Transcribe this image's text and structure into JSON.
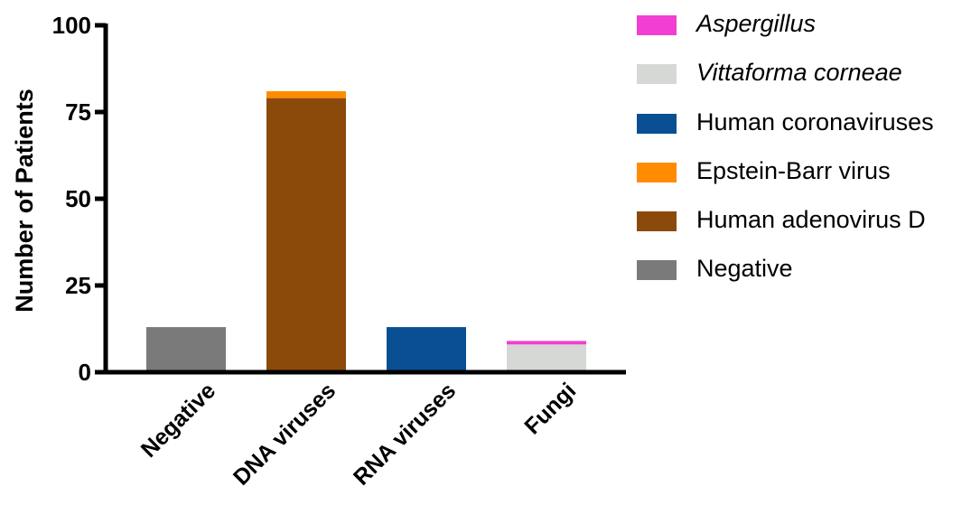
{
  "chart_data": {
    "type": "bar",
    "stacked": true,
    "title": "",
    "xlabel": "",
    "ylabel": "Number of Patients",
    "ylim": [
      0,
      100
    ],
    "yticks": [
      "0",
      "25",
      "50",
      "75",
      "100"
    ],
    "categories": [
      "Negative",
      "DNA viruses",
      "RNA viruses",
      "Fungi"
    ],
    "series": [
      {
        "name": "Negative",
        "color": "#7a7a7a",
        "values": [
          13,
          0,
          0,
          0
        ]
      },
      {
        "name": "Human adenovirus D",
        "color": "#8b4a09",
        "values": [
          0,
          79,
          0,
          0
        ]
      },
      {
        "name": "Epstein-Barr virus",
        "color": "#ff8c00",
        "values": [
          0,
          2,
          0,
          0
        ]
      },
      {
        "name": "Human coronaviruses",
        "color": "#0a4f94",
        "values": [
          0,
          0,
          13,
          0
        ]
      },
      {
        "name": "Vittaforma corneae",
        "color": "#d5d8d5",
        "values": [
          0,
          0,
          0,
          8
        ]
      },
      {
        "name": "Aspergillus",
        "color": "#f23ed2",
        "values": [
          0,
          0,
          0,
          1
        ]
      }
    ],
    "legend": {
      "placement": "right",
      "items": [
        {
          "name": "Aspergillus",
          "color": "#f23ed2",
          "italic": true
        },
        {
          "name": "Vittaforma corneae",
          "color": "#d5d8d5",
          "italic": true
        },
        {
          "name": "Human coronaviruses",
          "color": "#0a4f94",
          "italic": false
        },
        {
          "name": "Epstein-Barr virus",
          "color": "#ff8c00",
          "italic": false
        },
        {
          "name": "Human adenovirus D",
          "color": "#8b4a09",
          "italic": false
        },
        {
          "name": "Negative",
          "color": "#7a7a7a",
          "italic": false
        }
      ]
    },
    "grid": false
  }
}
